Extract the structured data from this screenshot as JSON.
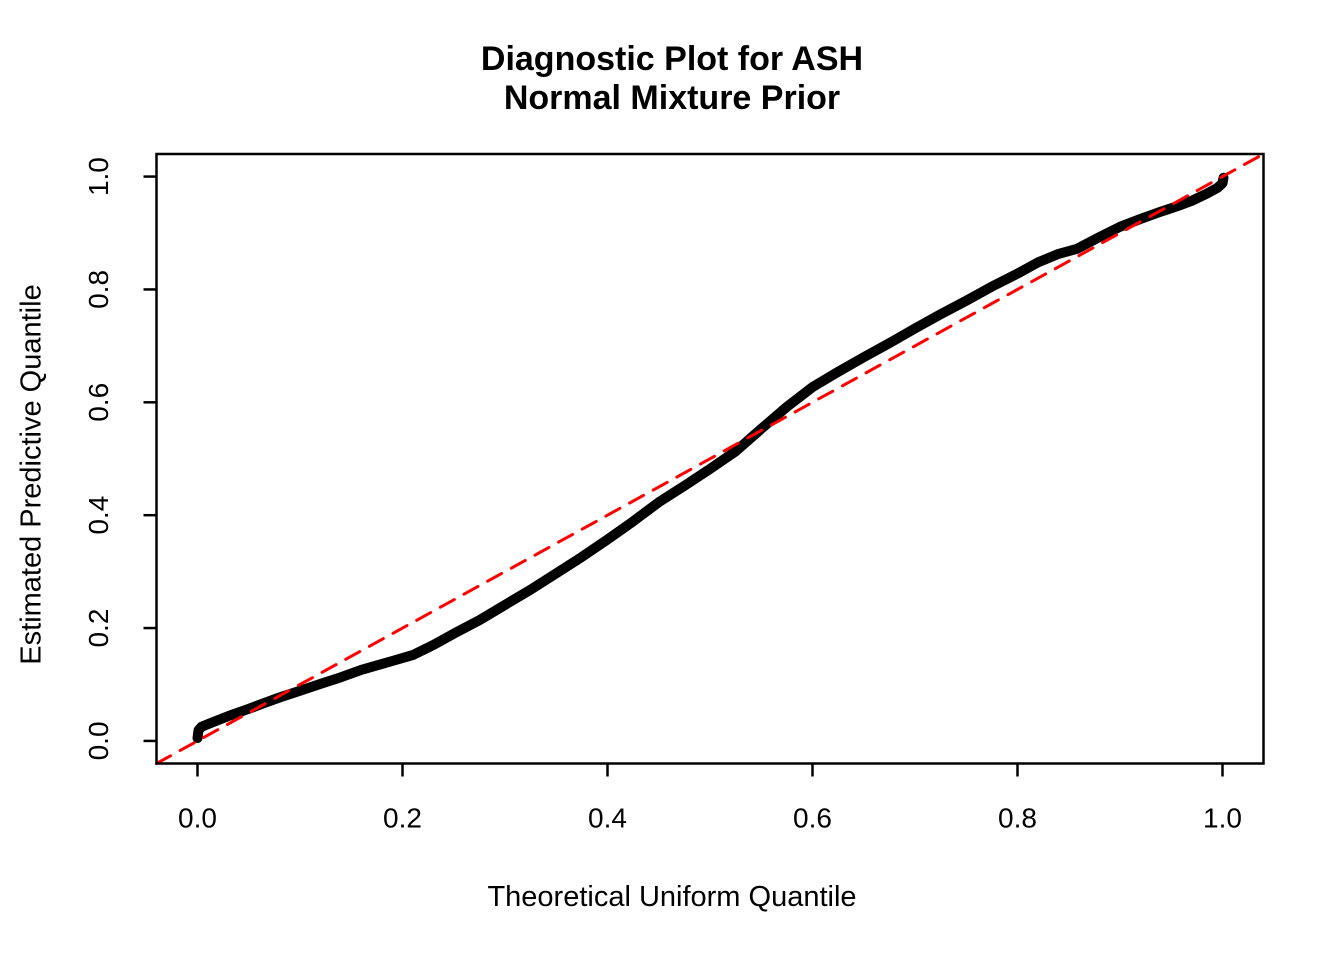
{
  "title": {
    "line1": "Diagnostic Plot for ASH",
    "line2": "Normal Mixture Prior"
  },
  "colors": {
    "curve": "#000000",
    "reference_line": "#ff0000",
    "axis": "#000000",
    "background": "#ffffff"
  },
  "chart_data": {
    "type": "line",
    "title": "Diagnostic Plot for ASH Normal Mixture Prior",
    "xlabel": "Theoretical Uniform Quantile",
    "ylabel": "Estimated Predictive Quantile",
    "xlim": [
      0,
      1
    ],
    "ylim": [
      0,
      1
    ],
    "axis_range_x": [
      -0.04,
      1.04
    ],
    "axis_range_y": [
      -0.04,
      1.04
    ],
    "x_ticks": [
      {
        "value": 0.0,
        "label": "0.0"
      },
      {
        "value": 0.2,
        "label": "0.2"
      },
      {
        "value": 0.4,
        "label": "0.4"
      },
      {
        "value": 0.6,
        "label": "0.6"
      },
      {
        "value": 0.8,
        "label": "0.8"
      },
      {
        "value": 1.0,
        "label": "1.0"
      }
    ],
    "y_ticks": [
      {
        "value": 0.0,
        "label": "0.0"
      },
      {
        "value": 0.2,
        "label": "0.2"
      },
      {
        "value": 0.4,
        "label": "0.4"
      },
      {
        "value": 0.6,
        "label": "0.6"
      },
      {
        "value": 0.8,
        "label": "0.8"
      },
      {
        "value": 1.0,
        "label": "1.0"
      }
    ],
    "grid": false,
    "legend": "none",
    "series": [
      {
        "name": "estimated-predictive-quantile-curve",
        "style": "solid",
        "stroke_width": 10,
        "color": "#000000",
        "points": [
          [
            0.0,
            0.005
          ],
          [
            0.0005,
            0.012
          ],
          [
            0.001,
            0.019
          ],
          [
            0.004,
            0.025
          ],
          [
            0.012,
            0.031
          ],
          [
            0.03,
            0.044
          ],
          [
            0.05,
            0.057
          ],
          [
            0.065,
            0.067
          ],
          [
            0.08,
            0.077
          ],
          [
            0.1,
            0.089
          ],
          [
            0.12,
            0.101
          ],
          [
            0.14,
            0.113
          ],
          [
            0.16,
            0.126
          ],
          [
            0.185,
            0.139
          ],
          [
            0.21,
            0.152
          ],
          [
            0.23,
            0.17
          ],
          [
            0.25,
            0.19
          ],
          [
            0.275,
            0.214
          ],
          [
            0.3,
            0.241
          ],
          [
            0.325,
            0.268
          ],
          [
            0.35,
            0.297
          ],
          [
            0.375,
            0.326
          ],
          [
            0.4,
            0.357
          ],
          [
            0.425,
            0.389
          ],
          [
            0.45,
            0.423
          ],
          [
            0.475,
            0.452
          ],
          [
            0.5,
            0.482
          ],
          [
            0.525,
            0.513
          ],
          [
            0.55,
            0.553
          ],
          [
            0.575,
            0.592
          ],
          [
            0.6,
            0.627
          ],
          [
            0.625,
            0.654
          ],
          [
            0.65,
            0.68
          ],
          [
            0.675,
            0.705
          ],
          [
            0.7,
            0.731
          ],
          [
            0.725,
            0.756
          ],
          [
            0.75,
            0.78
          ],
          [
            0.775,
            0.805
          ],
          [
            0.8,
            0.828
          ],
          [
            0.82,
            0.848
          ],
          [
            0.84,
            0.863
          ],
          [
            0.858,
            0.872
          ],
          [
            0.88,
            0.893
          ],
          [
            0.9,
            0.911
          ],
          [
            0.92,
            0.925
          ],
          [
            0.94,
            0.938
          ],
          [
            0.955,
            0.947
          ],
          [
            0.97,
            0.957
          ],
          [
            0.985,
            0.97
          ],
          [
            0.995,
            0.98
          ],
          [
            1.0,
            0.988
          ],
          [
            1.001,
            0.998
          ]
        ]
      },
      {
        "name": "y-equals-x-reference-line",
        "style": "dashed",
        "stroke_width": 3,
        "color": "#ff0000",
        "points": [
          [
            -0.04,
            -0.04
          ],
          [
            1.04,
            1.04
          ]
        ]
      }
    ]
  }
}
